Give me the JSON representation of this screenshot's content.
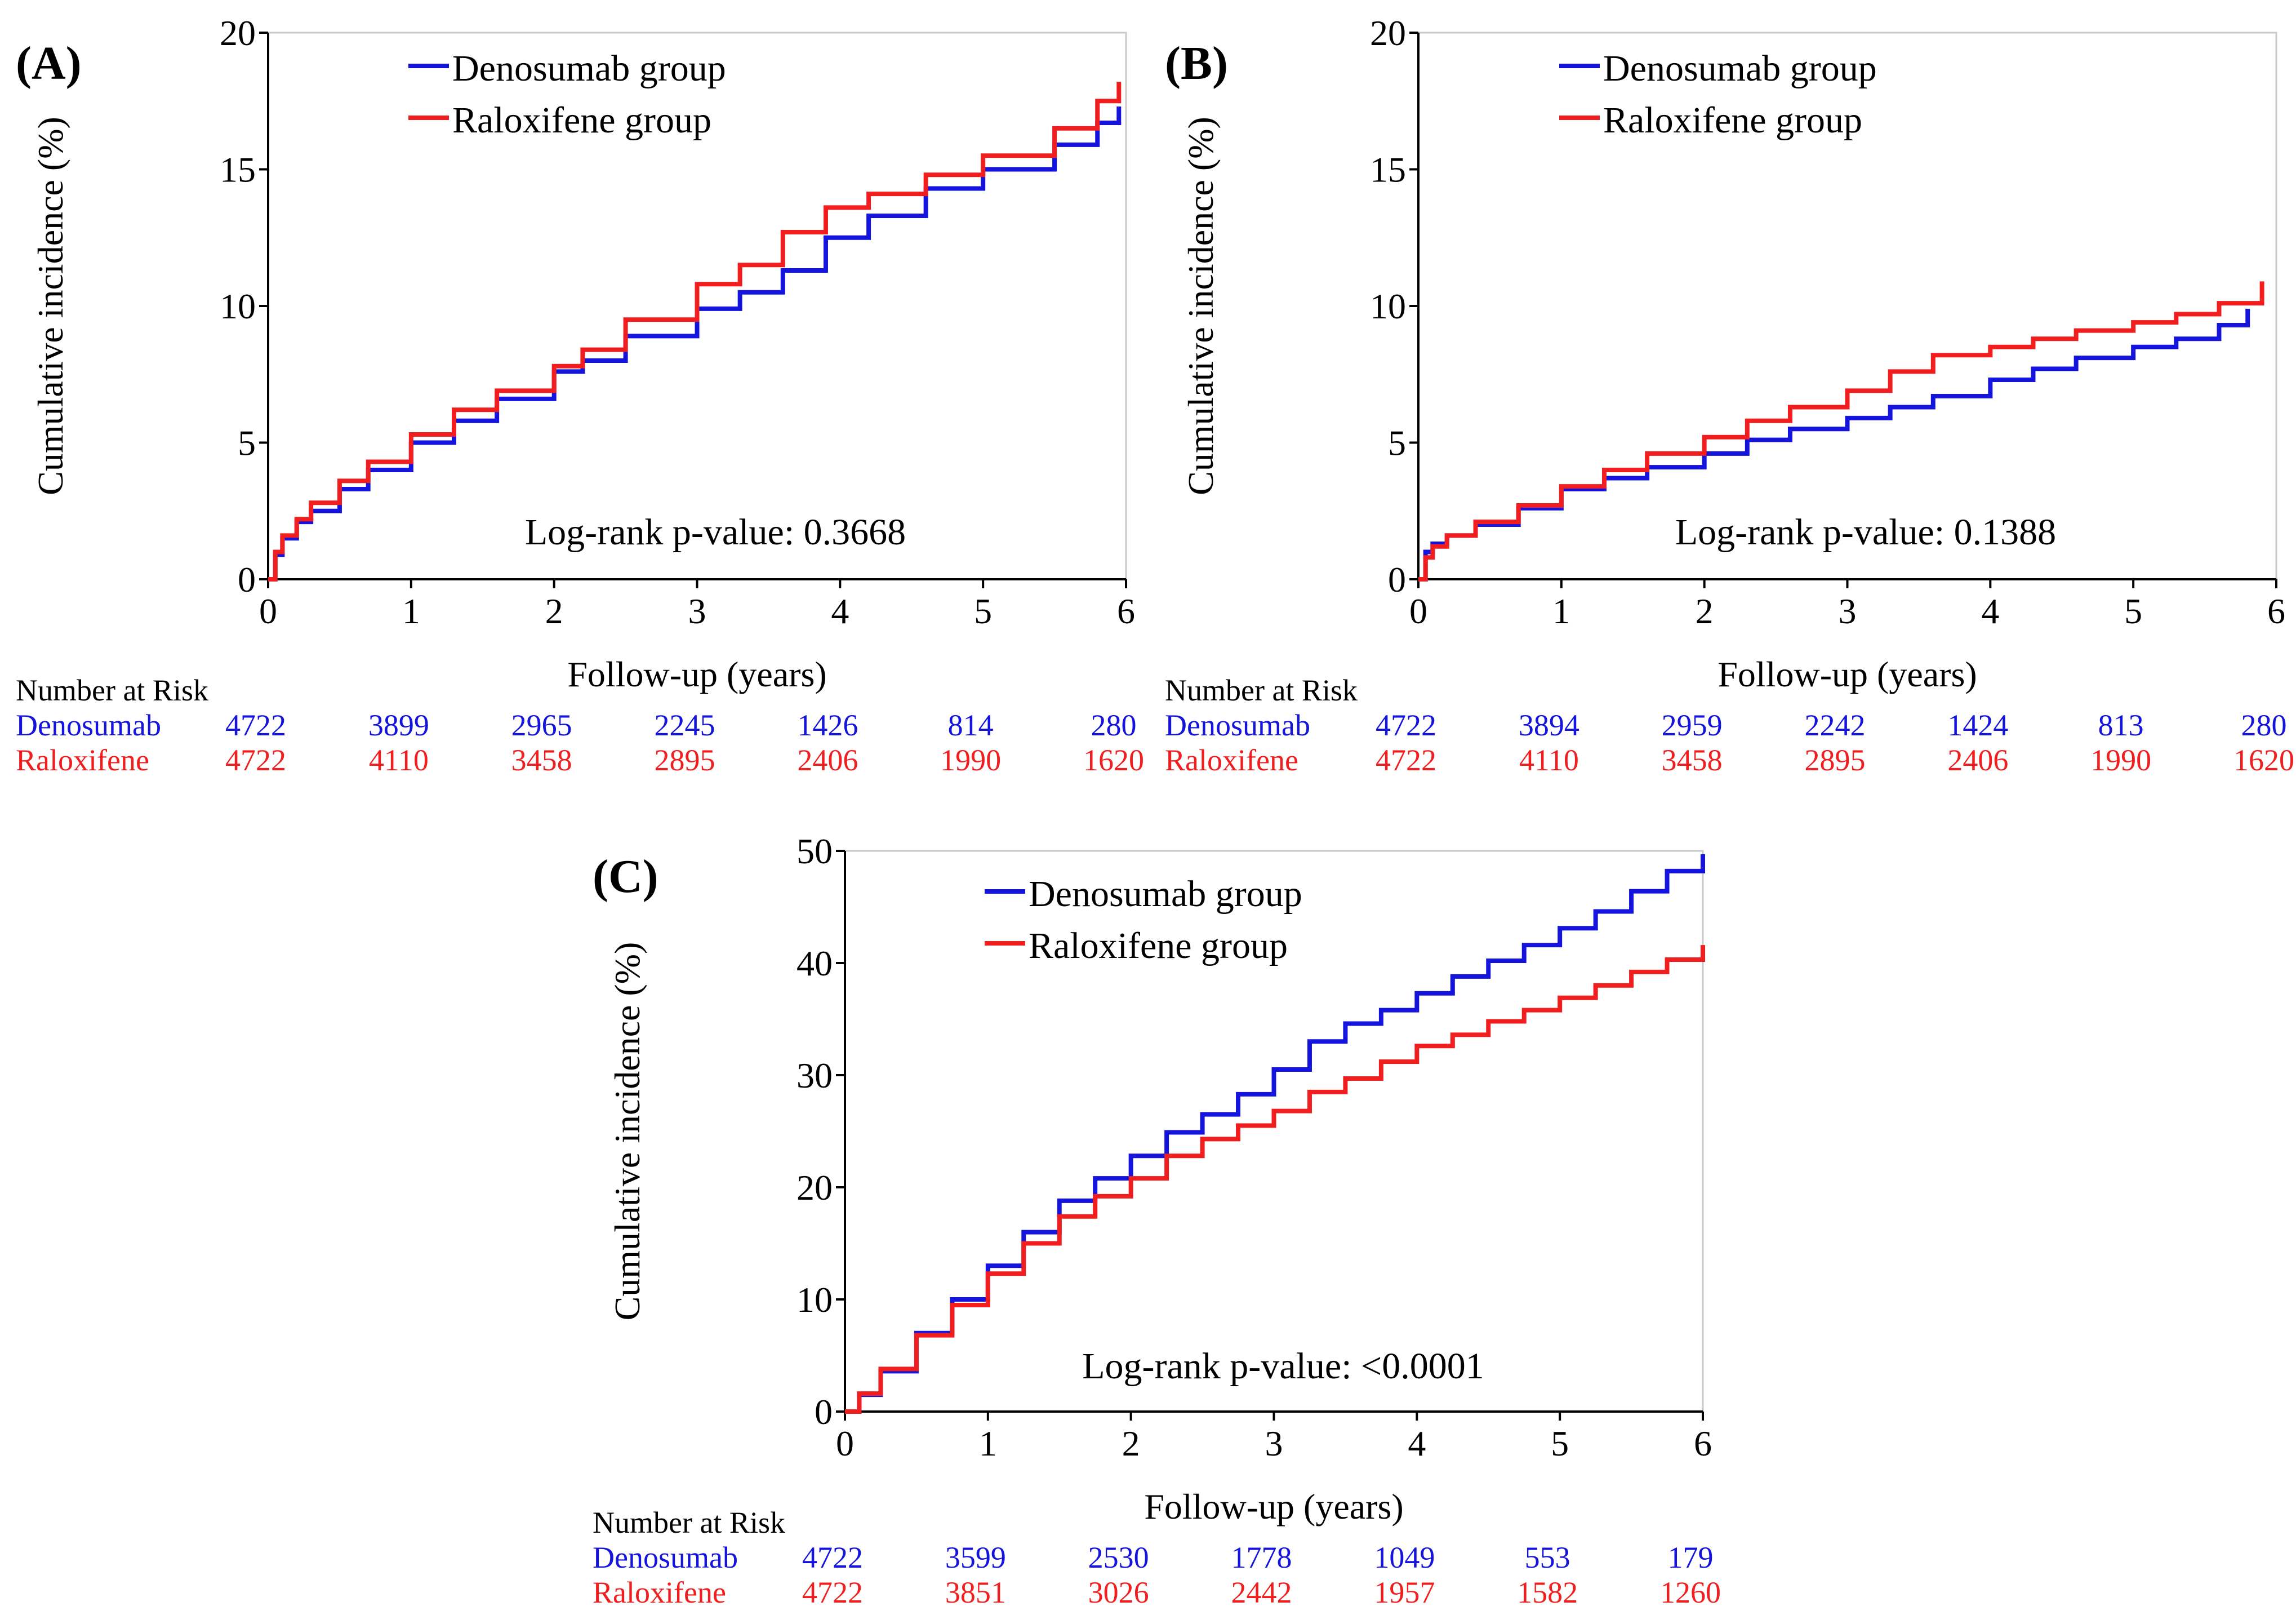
{
  "colors": {
    "denosumab": "#1414dc",
    "raloxifene": "#f01e1e",
    "axis": "#000000",
    "frame": "#c8c8c8"
  },
  "risk_table_title": "Number at Risk",
  "chart_data": [
    {
      "id": "A",
      "type": "line",
      "panel_label": "(A)",
      "xlabel": "Follow-up (years)",
      "ylabel": "Cumulative incidence (%)",
      "xlim": [
        0,
        6
      ],
      "ylim": [
        0,
        20
      ],
      "xticks": [
        "0",
        "1",
        "2",
        "3",
        "4",
        "5",
        "6"
      ],
      "yticks": [
        "0",
        "5",
        "10",
        "15",
        "20"
      ],
      "legend": [
        "Denosumab group",
        "Raloxifene group"
      ],
      "annotation": "Log-rank p-value: 0.3668",
      "series": [
        {
          "name": "Denosumab group",
          "color_key": "denosumab",
          "x": [
            0,
            0.05,
            0.1,
            0.2,
            0.3,
            0.5,
            0.7,
            1.0,
            1.3,
            1.6,
            2.0,
            2.2,
            2.5,
            3.0,
            3.3,
            3.6,
            3.9,
            4.2,
            4.6,
            5.0,
            5.5,
            5.8,
            5.95
          ],
          "y": [
            0,
            0.9,
            1.5,
            2.1,
            2.5,
            3.3,
            4.0,
            5.0,
            5.8,
            6.6,
            7.6,
            8.0,
            8.9,
            9.9,
            10.5,
            11.3,
            12.5,
            13.3,
            14.3,
            15.0,
            15.9,
            16.7,
            17.3
          ]
        },
        {
          "name": "Raloxifene group",
          "color_key": "raloxifene",
          "x": [
            0,
            0.05,
            0.1,
            0.2,
            0.3,
            0.5,
            0.7,
            1.0,
            1.3,
            1.6,
            2.0,
            2.2,
            2.5,
            3.0,
            3.3,
            3.6,
            3.9,
            4.2,
            4.6,
            5.0,
            5.5,
            5.8,
            5.95
          ],
          "y": [
            0,
            1.0,
            1.6,
            2.2,
            2.8,
            3.6,
            4.3,
            5.3,
            6.2,
            6.9,
            7.8,
            8.4,
            9.5,
            10.8,
            11.5,
            12.7,
            13.6,
            14.1,
            14.8,
            15.5,
            16.5,
            17.5,
            18.2
          ]
        }
      ],
      "risk_table": [
        {
          "label": "Denosumab",
          "color_key": "denosumab",
          "values": [
            "4722",
            "3899",
            "2965",
            "2245",
            "1426",
            "814",
            "280"
          ]
        },
        {
          "label": "Raloxifene",
          "color_key": "raloxifene",
          "values": [
            "4722",
            "4110",
            "3458",
            "2895",
            "2406",
            "1990",
            "1620"
          ]
        }
      ]
    },
    {
      "id": "B",
      "type": "line",
      "panel_label": "(B)",
      "xlabel": "Follow-up (years)",
      "ylabel": "Cumulative incidence (%)",
      "xlim": [
        0,
        6
      ],
      "ylim": [
        0,
        20
      ],
      "xticks": [
        "0",
        "1",
        "2",
        "3",
        "4",
        "5",
        "6"
      ],
      "yticks": [
        "0",
        "5",
        "10",
        "15",
        "20"
      ],
      "legend": [
        "Denosumab group",
        "Raloxifene group"
      ],
      "annotation": "Log-rank p-value: 0.1388",
      "series": [
        {
          "name": "Denosumab group",
          "color_key": "denosumab",
          "x": [
            0,
            0.05,
            0.1,
            0.2,
            0.4,
            0.7,
            1.0,
            1.3,
            1.6,
            2.0,
            2.3,
            2.6,
            3.0,
            3.3,
            3.6,
            4.0,
            4.3,
            4.6,
            5.0,
            5.3,
            5.6,
            5.8
          ],
          "y": [
            0,
            1.0,
            1.3,
            1.6,
            2.0,
            2.6,
            3.3,
            3.7,
            4.1,
            4.6,
            5.1,
            5.5,
            5.9,
            6.3,
            6.7,
            7.3,
            7.7,
            8.1,
            8.5,
            8.8,
            9.3,
            9.9
          ]
        },
        {
          "name": "Raloxifene group",
          "color_key": "raloxifene",
          "x": [
            0,
            0.05,
            0.1,
            0.2,
            0.4,
            0.7,
            1.0,
            1.3,
            1.6,
            2.0,
            2.3,
            2.6,
            3.0,
            3.3,
            3.6,
            4.0,
            4.3,
            4.6,
            5.0,
            5.3,
            5.6,
            5.9
          ],
          "y": [
            0,
            0.8,
            1.2,
            1.6,
            2.1,
            2.7,
            3.4,
            4.0,
            4.6,
            5.2,
            5.8,
            6.3,
            6.9,
            7.6,
            8.2,
            8.5,
            8.8,
            9.1,
            9.4,
            9.7,
            10.1,
            10.9
          ]
        }
      ],
      "risk_table": [
        {
          "label": "Denosumab",
          "color_key": "denosumab",
          "values": [
            "4722",
            "3894",
            "2959",
            "2242",
            "1424",
            "813",
            "280"
          ]
        },
        {
          "label": "Raloxifene",
          "color_key": "raloxifene",
          "values": [
            "4722",
            "4110",
            "3458",
            "2895",
            "2406",
            "1990",
            "1620"
          ]
        }
      ]
    },
    {
      "id": "C",
      "type": "line",
      "panel_label": "(C)",
      "xlabel": "Follow-up (years)",
      "ylabel": "Cumulative incidence (%)",
      "xlim": [
        0,
        6
      ],
      "ylim": [
        0,
        50
      ],
      "xticks": [
        "0",
        "1",
        "2",
        "3",
        "4",
        "5",
        "6"
      ],
      "yticks": [
        "0",
        "10",
        "20",
        "30",
        "40",
        "50"
      ],
      "legend": [
        "Denosumab group",
        "Raloxifene group"
      ],
      "annotation": "Log-rank p-value: <0.0001",
      "series": [
        {
          "name": "Denosumab group",
          "color_key": "denosumab",
          "x": [
            0,
            0.1,
            0.25,
            0.5,
            0.75,
            1.0,
            1.25,
            1.5,
            1.75,
            2.0,
            2.25,
            2.5,
            2.75,
            3.0,
            3.25,
            3.5,
            3.75,
            4.0,
            4.25,
            4.5,
            4.75,
            5.0,
            5.25,
            5.5,
            5.75,
            6.0
          ],
          "y": [
            0,
            1.5,
            3.6,
            7.0,
            10.0,
            13.0,
            16.0,
            18.8,
            20.8,
            22.8,
            24.9,
            26.5,
            28.3,
            30.5,
            33.0,
            34.6,
            35.8,
            37.3,
            38.8,
            40.2,
            41.6,
            43.1,
            44.6,
            46.4,
            48.2,
            49.7
          ]
        },
        {
          "name": "Raloxifene group",
          "color_key": "raloxifene",
          "x": [
            0,
            0.1,
            0.25,
            0.5,
            0.75,
            1.0,
            1.25,
            1.5,
            1.75,
            2.0,
            2.25,
            2.5,
            2.75,
            3.0,
            3.25,
            3.5,
            3.75,
            4.0,
            4.25,
            4.5,
            4.75,
            5.0,
            5.25,
            5.5,
            5.75,
            6.0
          ],
          "y": [
            0,
            1.6,
            3.8,
            6.8,
            9.5,
            12.3,
            15.0,
            17.4,
            19.2,
            20.8,
            22.8,
            24.3,
            25.5,
            26.8,
            28.5,
            29.7,
            31.2,
            32.6,
            33.6,
            34.8,
            35.8,
            36.9,
            38.0,
            39.2,
            40.3,
            41.6
          ]
        }
      ],
      "risk_table": [
        {
          "label": "Denosumab",
          "color_key": "denosumab",
          "values": [
            "4722",
            "3599",
            "2530",
            "1778",
            "1049",
            "553",
            "179"
          ]
        },
        {
          "label": "Raloxifene",
          "color_key": "raloxifene",
          "values": [
            "4722",
            "3851",
            "3026",
            "2442",
            "1957",
            "1582",
            "1260"
          ]
        }
      ]
    }
  ]
}
